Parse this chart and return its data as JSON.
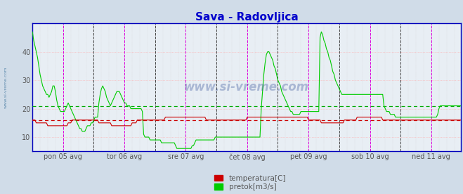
{
  "title": "Sava - Radovljica",
  "title_color": "#0000cc",
  "title_fontsize": 11,
  "bg_color": "#d0dce8",
  "plot_bg_color": "#e8eef4",
  "watermark": "www.si-vreme.com",
  "watermark_side": "www.si-vreme.com",
  "ylim": [
    5,
    50
  ],
  "yticks": [
    10,
    20,
    30,
    40
  ],
  "avg_temp_line": 16.0,
  "avg_pretok_line": 21.0,
  "avg_temp_color": "#cc0000",
  "avg_pretok_color": "#00aa00",
  "temp_color": "#cc0000",
  "pretok_color": "#00cc00",
  "border_color": "#0000bb",
  "vline_magenta": "#dd00dd",
  "vline_dark": "#444444",
  "grid_pink": "#ffaaaa",
  "grid_light": "#cccccc",
  "tick_color": "#555555",
  "x_tick_labels": [
    "pon 05 avg",
    "tor 06 avg",
    "sre 07 avg",
    "čet 08 avg",
    "pet 09 avg",
    "sob 10 avg",
    "ned 11 avg"
  ],
  "points_per_day": 48,
  "n_days": 7,
  "temp_data": [
    16,
    16,
    16,
    15,
    15,
    15,
    15,
    15,
    15,
    15,
    15,
    15,
    14,
    14,
    14,
    14,
    14,
    14,
    14,
    14,
    14,
    14,
    14,
    14,
    14,
    14,
    14,
    14,
    15,
    15,
    15,
    16,
    16,
    16,
    16,
    16,
    16,
    16,
    16,
    16,
    16,
    16,
    16,
    16,
    16,
    16,
    16,
    16,
    16,
    16,
    16,
    16,
    15,
    15,
    15,
    15,
    15,
    15,
    15,
    15,
    15,
    15,
    14,
    14,
    14,
    14,
    14,
    14,
    14,
    14,
    14,
    14,
    14,
    14,
    14,
    14,
    14,
    14,
    15,
    15,
    15,
    15,
    16,
    16,
    16,
    16,
    16,
    16,
    16,
    16,
    16,
    16,
    16,
    16,
    16,
    16,
    16,
    16,
    16,
    16,
    16,
    16,
    16,
    16,
    17,
    17,
    17,
    17,
    17,
    17,
    17,
    17,
    17,
    17,
    17,
    17,
    17,
    17,
    17,
    17,
    17,
    17,
    17,
    17,
    17,
    17,
    17,
    17,
    17,
    17,
    17,
    17,
    17,
    17,
    17,
    17,
    16,
    16,
    16,
    16,
    16,
    16,
    16,
    16,
    16,
    16,
    16,
    16,
    16,
    16,
    16,
    16,
    16,
    16,
    16,
    16,
    16,
    16,
    16,
    16,
    16,
    16,
    16,
    16,
    16,
    16,
    16,
    16,
    17,
    17,
    17,
    17,
    17,
    17,
    17,
    17,
    17,
    17,
    17,
    17,
    17,
    17,
    17,
    17,
    17,
    17,
    17,
    17,
    17,
    17,
    17,
    17,
    17,
    17,
    17,
    17,
    17,
    17,
    17,
    17,
    17,
    17,
    17,
    17,
    17,
    17,
    17,
    17,
    17,
    17,
    17,
    17,
    17,
    17,
    17,
    17,
    16,
    16,
    16,
    16,
    16,
    16,
    16,
    16,
    16,
    16,
    15,
    15,
    15,
    15,
    15,
    15,
    15,
    15,
    15,
    15,
    15,
    15,
    15,
    15,
    15,
    15,
    15,
    15,
    16,
    16,
    16,
    16,
    16,
    16,
    16,
    16,
    16,
    16,
    17,
    17,
    17,
    17,
    17,
    17,
    17,
    17,
    17,
    17,
    17,
    17,
    17,
    17,
    17,
    17,
    17,
    17,
    17,
    17,
    16,
    16,
    16,
    16,
    16,
    16,
    16,
    16,
    16,
    16,
    16,
    16,
    16,
    16,
    16,
    16,
    16,
    16,
    16,
    16,
    16,
    16,
    16,
    16,
    16,
    16,
    16,
    16,
    16,
    16,
    16,
    16,
    16,
    16,
    16,
    16,
    16,
    16,
    16,
    16,
    16,
    16,
    16,
    16,
    16,
    16,
    16,
    16,
    16,
    16,
    16,
    16,
    16,
    16,
    16,
    16,
    16,
    16,
    16,
    16,
    16,
    16
  ],
  "pretok_data": [
    47,
    44,
    42,
    40,
    38,
    35,
    32,
    30,
    28,
    27,
    26,
    25,
    25,
    24,
    25,
    26,
    28,
    28,
    26,
    23,
    21,
    20,
    19,
    19,
    19,
    19,
    20,
    21,
    22,
    21,
    20,
    19,
    18,
    17,
    16,
    15,
    14,
    13,
    13,
    12,
    12,
    12,
    13,
    14,
    14,
    14,
    15,
    15,
    16,
    17,
    17,
    17,
    22,
    25,
    27,
    28,
    27,
    26,
    24,
    23,
    22,
    21,
    22,
    23,
    24,
    25,
    26,
    26,
    26,
    25,
    24,
    23,
    22,
    22,
    21,
    21,
    21,
    20,
    20,
    20,
    20,
    20,
    20,
    20,
    20,
    20,
    19,
    11,
    10,
    10,
    10,
    10,
    9,
    9,
    9,
    9,
    9,
    9,
    9,
    9,
    9,
    8,
    8,
    8,
    8,
    8,
    8,
    8,
    8,
    8,
    8,
    8,
    7,
    6,
    6,
    6,
    6,
    6,
    6,
    6,
    6,
    6,
    6,
    6,
    6,
    7,
    7,
    8,
    9,
    9,
    9,
    9,
    9,
    9,
    9,
    9,
    9,
    9,
    9,
    9,
    9,
    9,
    9,
    10,
    10,
    10,
    10,
    10,
    10,
    10,
    10,
    10,
    10,
    10,
    10,
    10,
    10,
    10,
    10,
    10,
    10,
    10,
    10,
    10,
    10,
    10,
    10,
    10,
    10,
    10,
    10,
    10,
    10,
    10,
    10,
    10,
    10,
    10,
    10,
    20,
    26,
    32,
    36,
    39,
    40,
    40,
    39,
    38,
    37,
    35,
    34,
    32,
    30,
    29,
    28,
    26,
    25,
    24,
    23,
    22,
    21,
    20,
    19,
    19,
    18,
    18,
    18,
    18,
    18,
    18,
    19,
    19,
    19,
    19,
    19,
    19,
    19,
    19,
    19,
    19,
    19,
    19,
    19,
    19,
    19,
    45,
    47,
    46,
    44,
    43,
    41,
    40,
    38,
    37,
    35,
    33,
    32,
    30,
    29,
    28,
    27,
    26,
    25,
    25,
    25,
    25,
    25,
    25,
    25,
    25,
    25,
    25,
    25,
    25,
    25,
    25,
    25,
    25,
    25,
    25,
    25,
    25,
    25,
    25,
    25,
    25,
    25,
    25,
    25,
    25,
    25,
    25,
    25,
    25,
    25,
    21,
    20,
    19,
    19,
    19,
    18,
    18,
    18,
    18,
    17,
    17,
    17,
    17,
    17,
    17,
    17,
    17,
    17,
    17,
    17,
    17,
    17,
    17,
    17,
    17,
    17,
    17,
    17,
    17,
    17,
    17,
    17,
    17,
    17,
    17,
    17,
    17,
    17,
    17,
    17,
    17,
    17,
    18,
    20,
    21,
    21,
    21,
    21,
    21,
    21,
    21,
    21,
    21,
    21,
    21,
    21,
    21,
    21,
    21,
    21,
    21,
    21,
    21,
    21,
    21,
    21,
    21,
    21,
    21,
    21,
    21,
    16
  ],
  "figsize": [
    6.59,
    2.76
  ],
  "dpi": 100
}
